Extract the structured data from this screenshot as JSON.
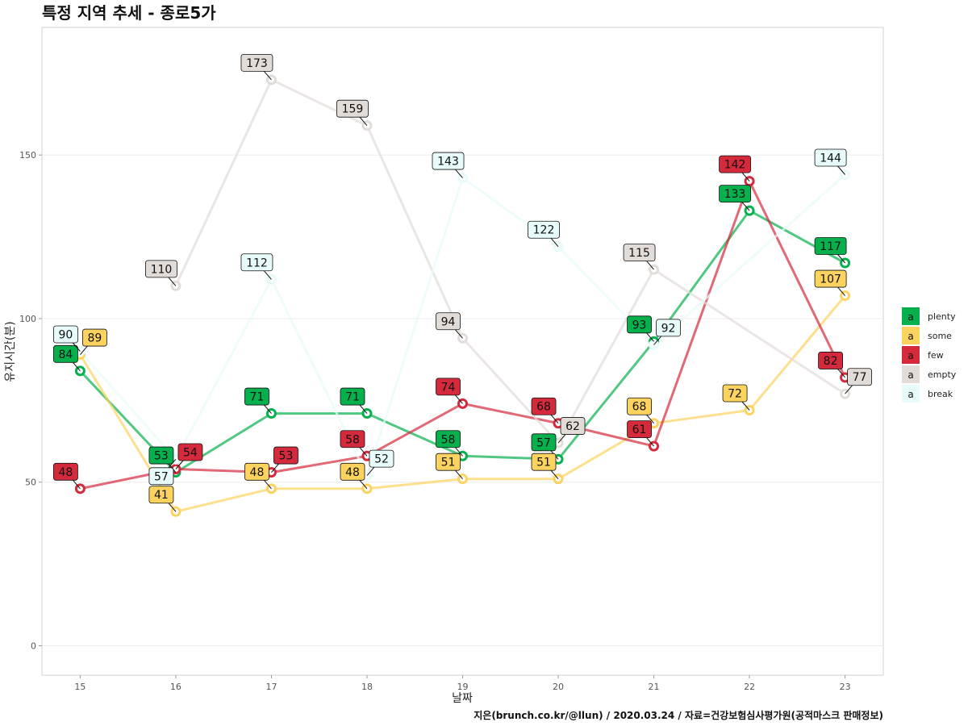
{
  "chart_data": {
    "type": "line",
    "title": "특정 지역 추세 - 종로5가",
    "xlabel": "날짜",
    "ylabel": "유지시간(분)",
    "caption": "지은(brunch.co.kr/@llun) / 2020.03.24 / 자료=건강보험심사평가원(공적마스크 판매정보)",
    "x": [
      15,
      16,
      17,
      18,
      19,
      20,
      21,
      22,
      23
    ],
    "x_ticks": [
      "15",
      "16",
      "17",
      "18",
      "19",
      "20",
      "21",
      "22",
      "23"
    ],
    "y_ticks": [
      "0",
      "50",
      "100",
      "150"
    ],
    "ylim": [
      -9,
      189
    ],
    "grid": true,
    "legend_position": "right",
    "legend_key_letter": "a",
    "series": [
      {
        "name": "plenty",
        "color": "#05b04d",
        "points": [
          [
            15,
            84
          ],
          [
            16,
            53
          ],
          [
            17,
            71
          ],
          [
            18,
            71
          ],
          [
            19,
            58
          ],
          [
            20,
            57
          ],
          [
            21,
            93
          ],
          [
            22,
            133
          ],
          [
            23,
            117
          ]
        ],
        "labels": [
          "84",
          "53",
          "71",
          "71",
          "58",
          "57",
          "93",
          "133",
          "117"
        ]
      },
      {
        "name": "some",
        "color": "#fcd35e",
        "points": [
          [
            15,
            89
          ],
          [
            16,
            41
          ],
          [
            17,
            48
          ],
          [
            18,
            48
          ],
          [
            19,
            51
          ],
          [
            20,
            51
          ],
          [
            21,
            68
          ],
          [
            22,
            72
          ],
          [
            23,
            107
          ]
        ],
        "labels": [
          "89",
          "41",
          "48",
          "48",
          "51",
          "51",
          "68",
          "72",
          "107"
        ]
      },
      {
        "name": "few",
        "color": "#d42a3c",
        "points": [
          [
            15,
            48
          ],
          [
            16,
            54
          ],
          [
            17,
            53
          ],
          [
            18,
            58
          ],
          [
            19,
            74
          ],
          [
            20,
            68
          ],
          [
            21,
            61
          ],
          [
            22,
            142
          ],
          [
            23,
            82
          ]
        ],
        "labels": [
          "48",
          "54",
          "53",
          "58",
          "74",
          "68",
          "61",
          "142",
          "82"
        ]
      },
      {
        "name": "empty",
        "color": "#e2dcd9",
        "points": [
          [
            16,
            110
          ],
          [
            17,
            173
          ],
          [
            18,
            159
          ],
          [
            19,
            94
          ],
          [
            20,
            62
          ],
          [
            21,
            115
          ],
          [
            23,
            77
          ]
        ],
        "labels": [
          "110",
          "173",
          "159",
          "94",
          "62",
          "115",
          "77"
        ]
      },
      {
        "name": "break",
        "color": "#e8fbfb",
        "points": [
          [
            15,
            90
          ],
          [
            16,
            57
          ],
          [
            17,
            112
          ],
          [
            18,
            52
          ],
          [
            19,
            143
          ],
          [
            20,
            122
          ],
          [
            21,
            92
          ],
          [
            23,
            144
          ]
        ],
        "labels": [
          "90",
          "57",
          "112",
          "52",
          "143",
          "122",
          "92",
          "144"
        ]
      }
    ]
  }
}
